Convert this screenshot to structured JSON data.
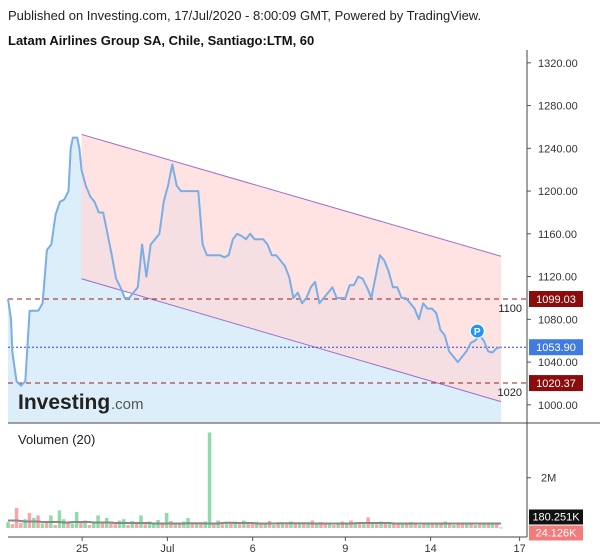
{
  "header": {
    "published": "Published on Investing.com, 17/Jul/2020 - 8:00:09 GMT, Powered by TradingView.",
    "title": "Latam Airlines Group SA, Chile, Santiago:LTM, 60"
  },
  "brand": {
    "logo_main": "Investing",
    "logo_suffix": ".com"
  },
  "colors": {
    "price_line": "#7aaee6",
    "area_fill": "#dbeef9",
    "channel_fill": "#ffd9d9",
    "channel_line": "#9b6fcf",
    "level_line": "#a11b1b",
    "current_line": "#2a4bd6",
    "current_badge": "#3f7be0",
    "level_badge": "#8b0c0c",
    "vol_up": "#8fdcaa",
    "vol_down": "#f6a8a8",
    "vol_ma": "#888888",
    "vol_ma_badge": "#111111",
    "vol_last_badge": "#f27b7b"
  },
  "chart_data": [
    {
      "type": "line",
      "title": "Latam Airlines Group SA, Chile, Santiago:LTM, 60",
      "x_ticks": [
        "25",
        "Jul",
        "6",
        "9",
        "14",
        "17"
      ],
      "y_ticks": [
        1000,
        1040,
        1080,
        1120,
        1160,
        1200,
        1240,
        1280,
        1320
      ],
      "y_tick_labels": [
        "1000.00",
        "1040.00",
        "1080.00",
        "1120.00",
        "1160.00",
        "1200.00",
        "1240.00",
        "1280.00",
        "1320.00"
      ],
      "ylim": [
        983,
        1332
      ],
      "series": [
        {
          "x": [
            0,
            0.7,
            1,
            1.5,
            2,
            3,
            4,
            5,
            6,
            7,
            8,
            9,
            10,
            11,
            12,
            13,
            14,
            14.5,
            15,
            16,
            16.5,
            17,
            18,
            19,
            20,
            21,
            22,
            23,
            24,
            25,
            26,
            27,
            28,
            29,
            30,
            31,
            32,
            33,
            34,
            35,
            36,
            37,
            38,
            39,
            40,
            41,
            42,
            43,
            44,
            45,
            46,
            47,
            48,
            49,
            50,
            51,
            52,
            53,
            54,
            55,
            56,
            57,
            58,
            59,
            60,
            61,
            62,
            63,
            64,
            65,
            66,
            67,
            68,
            69,
            70,
            71,
            72,
            73,
            74,
            75,
            76,
            77,
            78,
            79,
            80,
            81,
            82,
            83,
            84,
            85,
            86,
            87,
            88,
            89,
            90,
            91,
            92,
            93,
            94,
            95,
            96,
            97,
            98,
            99,
            100,
            101,
            102,
            103,
            104,
            105,
            106,
            107,
            108,
            109,
            110,
            111,
            112,
            113,
            114
          ],
          "values": [
            1099,
            1080,
            1050,
            1035,
            1022,
            1018,
            1022,
            1088,
            1088,
            1088,
            1095,
            1145,
            1150,
            1178,
            1190,
            1192,
            1200,
            1240,
            1250,
            1250,
            1240,
            1220,
            1205,
            1195,
            1190,
            1180,
            1180,
            1160,
            1140,
            1118,
            1110,
            1100,
            1100,
            1105,
            1110,
            1150,
            1120,
            1150,
            1155,
            1160,
            1190,
            1205,
            1225,
            1205,
            1200,
            1200,
            1200,
            1200,
            1200,
            1150,
            1140,
            1140,
            1140,
            1140,
            1138,
            1140,
            1155,
            1160,
            1158,
            1155,
            1160,
            1155,
            1155,
            1155,
            1150,
            1140,
            1140,
            1135,
            1130,
            1120,
            1100,
            1105,
            1095,
            1100,
            1110,
            1115,
            1095,
            1100,
            1105,
            1110,
            1100,
            1100,
            1100,
            1112,
            1112,
            1120,
            1118,
            1110,
            1100,
            1120,
            1140,
            1135,
            1125,
            1110,
            1110,
            1100,
            1100,
            1095,
            1090,
            1080,
            1095,
            1090,
            1090,
            1086,
            1070,
            1065,
            1050,
            1045,
            1040,
            1045,
            1050,
            1058,
            1060,
            1065,
            1060,
            1050,
            1049,
            1053,
            1053.9
          ]
        }
      ],
      "channel": {
        "upper": {
          "from": {
            "x": 17,
            "y": 1253
          },
          "to": {
            "x": 114,
            "y": 1139
          }
        },
        "lower": {
          "from": {
            "x": 17,
            "y": 1118
          },
          "to": {
            "x": 114,
            "y": 1003
          }
        }
      },
      "levels": [
        {
          "value": 1099.03,
          "label": "1099.03",
          "tag": "1100"
        },
        {
          "value": 1020.37,
          "label": "1020.37",
          "tag": "1020"
        }
      ],
      "current": {
        "value": 1053.9,
        "label": "1053.90"
      },
      "marker": {
        "label": "P",
        "x": 108.5,
        "value": 1069
      }
    },
    {
      "type": "bar",
      "title": "Volumen (20)",
      "y_ticks": [
        2000000
      ],
      "y_tick_labels": [
        "2M"
      ],
      "ylim": [
        0,
        3900000
      ],
      "ma_label": "180.251K",
      "last_label": "24.126K",
      "ma_values": [
        300,
        300,
        300,
        280,
        260,
        260,
        260,
        260,
        240,
        240,
        240,
        240,
        240,
        220,
        220,
        240,
        240,
        240,
        240,
        240,
        220,
        220,
        220,
        220,
        220,
        200,
        200,
        200,
        200,
        200,
        200,
        200,
        200,
        200,
        180,
        180,
        180,
        180,
        180,
        180,
        180,
        180,
        190,
        190,
        190,
        190,
        180,
        180,
        180,
        180,
        200,
        210,
        210,
        200,
        200,
        200,
        200,
        200,
        180,
        180,
        180,
        180,
        180,
        190,
        190,
        190,
        190,
        190,
        190,
        190,
        190,
        180,
        180,
        180,
        180,
        180,
        180,
        180,
        180,
        180,
        180,
        190,
        200,
        200,
        200,
        200,
        200,
        200,
        200,
        200,
        180,
        180,
        180,
        180,
        180,
        180,
        180,
        180,
        180,
        180,
        180,
        180,
        180,
        180,
        180,
        180,
        180,
        180,
        180,
        180,
        180,
        180,
        180,
        180,
        180,
        180
      ],
      "volumes_k": [
        230,
        150,
        800,
        200,
        350,
        600,
        400,
        500,
        180,
        220,
        500,
        120,
        700,
        350,
        260,
        180,
        640,
        250,
        300,
        120,
        200,
        500,
        180,
        400,
        260,
        150,
        300,
        350,
        120,
        280,
        200,
        500,
        150,
        260,
        180,
        320,
        200,
        600,
        280,
        150,
        200,
        260,
        400,
        180,
        220,
        180,
        260,
        3800,
        200,
        300,
        150,
        220,
        180,
        260,
        150,
        300,
        200,
        180,
        250,
        200,
        150,
        280,
        120,
        200,
        180,
        150,
        260,
        220,
        180,
        200,
        150,
        300,
        180,
        240,
        150,
        200,
        120,
        180,
        260,
        150,
        300,
        200,
        180,
        150,
        420,
        200,
        150,
        260,
        220,
        150,
        180,
        200,
        150,
        180,
        240,
        180,
        120,
        200,
        160,
        150,
        180,
        200,
        260,
        150,
        120,
        180,
        140,
        200,
        150,
        120,
        180,
        160,
        140,
        160,
        150,
        24
      ],
      "volume_up": [
        1,
        0,
        0,
        0,
        1,
        0,
        1,
        0,
        1,
        0,
        1,
        0,
        1,
        1,
        0,
        1,
        1,
        0,
        1,
        0,
        1,
        1,
        0,
        1,
        0,
        0,
        1,
        1,
        0,
        1,
        0,
        1,
        0,
        1,
        1,
        1,
        0,
        1,
        0,
        1,
        0,
        1,
        1,
        0,
        1,
        0,
        1,
        1,
        0,
        1,
        0,
        1,
        0,
        1,
        0,
        1,
        0,
        0,
        1,
        0,
        1,
        0,
        1,
        0,
        1,
        0,
        1,
        0,
        1,
        0,
        1,
        0,
        1,
        0,
        0,
        1,
        0,
        1,
        0,
        1,
        0,
        1,
        0,
        1,
        0,
        1,
        0,
        1,
        0,
        1,
        0,
        0,
        1,
        0,
        1,
        0,
        1,
        0,
        1,
        0,
        1,
        0,
        1,
        0,
        1,
        0,
        0,
        1,
        0,
        1,
        0,
        1,
        0,
        1,
        0,
        0
      ]
    }
  ]
}
